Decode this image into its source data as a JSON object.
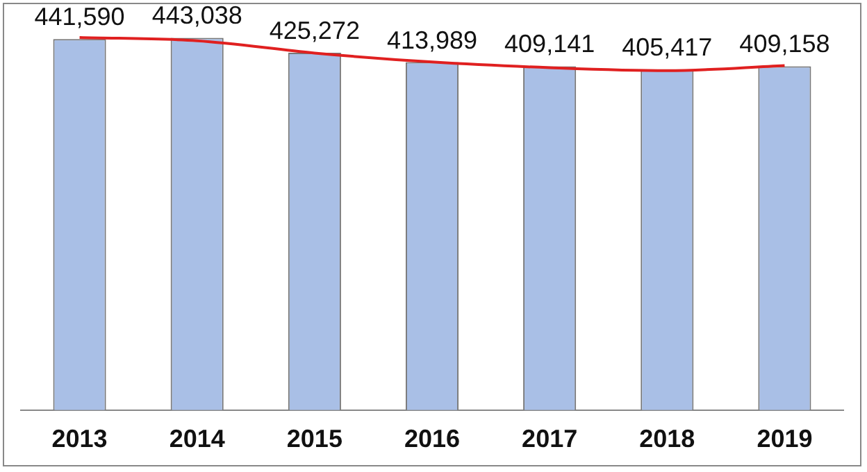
{
  "chart_data": {
    "type": "bar",
    "categories": [
      "2013",
      "2014",
      "2015",
      "2016",
      "2017",
      "2018",
      "2019"
    ],
    "series": [
      {
        "type": "bar",
        "color": "#a9bfe6",
        "values": [
          441590,
          443038,
          425272,
          413989,
          409141,
          405417,
          409158
        ],
        "value_labels": [
          "441,590",
          "443,038",
          "425,272",
          "413,989",
          "409,141",
          "405,417",
          "409,158"
        ]
      },
      {
        "type": "line",
        "color": "#e02020",
        "values": [
          443400,
          439500,
          424900,
          414200,
          407500,
          403900,
          410000
        ]
      }
    ],
    "tick_labels": "x",
    "grid": false,
    "legend": false,
    "marker": "none",
    "line_style": "solid"
  }
}
